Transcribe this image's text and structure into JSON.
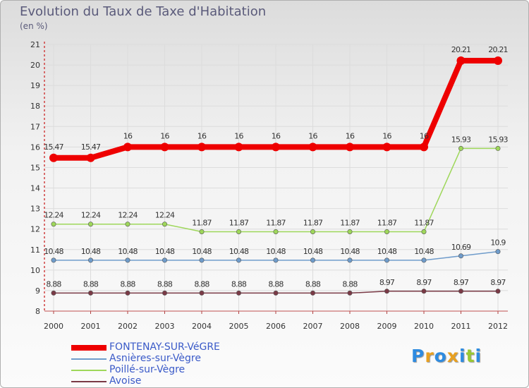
{
  "chart_data": {
    "type": "line",
    "title": "Evolution du Taux de Taxe d'Habitation",
    "ylabel": "(en %)",
    "xlabel": "",
    "ylim": [
      8,
      21
    ],
    "yticks": [
      "8",
      "9",
      "10",
      "11",
      "12",
      "13",
      "14",
      "15",
      "16",
      "17",
      "18",
      "19",
      "20",
      "21"
    ],
    "categories": [
      "2000",
      "2001",
      "2002",
      "2003",
      "2004",
      "2005",
      "2006",
      "2007",
      "2008",
      "2009",
      "2010",
      "2011",
      "2012"
    ],
    "series": [
      {
        "name": "FONTENAY-SUR-VéGRE",
        "color": "#ee0000",
        "values": [
          15.47,
          15.47,
          16,
          16,
          16,
          16,
          16,
          16,
          16,
          16,
          16,
          20.21,
          20.21
        ],
        "labels": [
          "15.47",
          "15.47",
          "16",
          "16",
          "16",
          "16",
          "16",
          "16",
          "16",
          "16",
          "16",
          "20.21",
          "20.21"
        ]
      },
      {
        "name": "Asnières-sur-Vègre",
        "color": "#6f9ccb",
        "values": [
          10.48,
          10.48,
          10.48,
          10.48,
          10.48,
          10.48,
          10.48,
          10.48,
          10.48,
          10.48,
          10.48,
          10.69,
          10.9
        ],
        "labels": [
          "10.48",
          "10.48",
          "10.48",
          "10.48",
          "10.48",
          "10.48",
          "10.48",
          "10.48",
          "10.48",
          "10.48",
          "10.48",
          "10.69",
          "10.9"
        ]
      },
      {
        "name": "Poillé-sur-Vègre",
        "color": "#9ed75a",
        "values": [
          12.24,
          12.24,
          12.24,
          12.24,
          11.87,
          11.87,
          11.87,
          11.87,
          11.87,
          11.87,
          11.87,
          15.93,
          15.93
        ],
        "labels": [
          "12.24",
          "12.24",
          "12.24",
          "12.24",
          "11.87",
          "11.87",
          "11.87",
          "11.87",
          "11.87",
          "11.87",
          "11.87",
          "15.93",
          "15.93"
        ]
      },
      {
        "name": "Avoise",
        "color": "#7a3a46",
        "values": [
          8.88,
          8.88,
          8.88,
          8.88,
          8.88,
          8.88,
          8.88,
          8.88,
          8.88,
          8.97,
          8.97,
          8.97,
          8.97
        ],
        "labels": [
          "8.88",
          "8.88",
          "8.88",
          "8.88",
          "8.88",
          "8.88",
          "8.88",
          "8.88",
          "8.88",
          "8.97",
          "8.97",
          "8.97",
          "8.97"
        ]
      }
    ],
    "legend_position": "bottom-left",
    "grid": true
  },
  "logo": {
    "letters": [
      "P",
      "r",
      "o",
      "x",
      "i",
      "t",
      "i"
    ],
    "colors": [
      "#2e8be0",
      "#e8a020",
      "#2e8be0",
      "#e8a020",
      "#2e8be0",
      "#9ac832",
      "#2e8be0"
    ]
  }
}
